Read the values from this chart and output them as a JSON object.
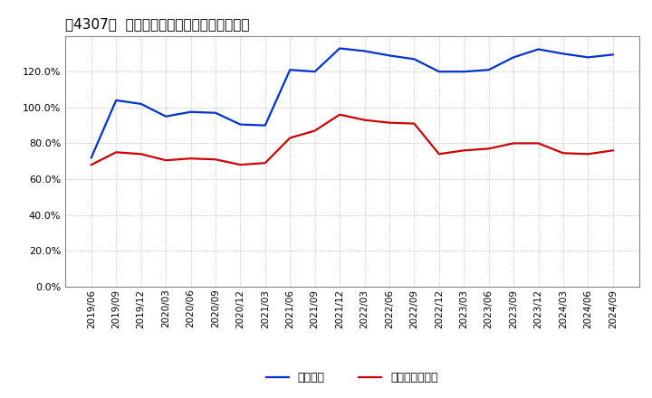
{
  "title": "［4307］  固定比率、固定長期適合率の推移",
  "x_labels": [
    "2019/06",
    "2019/09",
    "2019/12",
    "2020/03",
    "2020/06",
    "2020/09",
    "2020/12",
    "2021/03",
    "2021/06",
    "2021/09",
    "2021/12",
    "2022/03",
    "2022/06",
    "2022/09",
    "2022/12",
    "2023/03",
    "2023/06",
    "2023/09",
    "2023/12",
    "2024/03",
    "2024/06",
    "2024/09"
  ],
  "fixed_ratio": [
    72.0,
    104.0,
    102.0,
    95.0,
    97.5,
    97.0,
    90.5,
    90.0,
    121.0,
    120.0,
    133.0,
    131.5,
    129.0,
    127.0,
    120.0,
    120.0,
    121.0,
    128.0,
    132.5,
    130.0,
    128.0,
    129.5
  ],
  "fixed_long_ratio": [
    68.0,
    75.0,
    74.0,
    70.5,
    71.5,
    71.0,
    68.0,
    69.0,
    83.0,
    87.0,
    96.0,
    93.0,
    91.5,
    91.0,
    74.0,
    76.0,
    77.0,
    80.0,
    80.0,
    74.5,
    74.0,
    76.0
  ],
  "blue_color": "#0033cc",
  "red_color": "#cc0000",
  "legend_fixed": "固定比率",
  "legend_fixed_long": "固定長期適合率",
  "ylim": [
    0,
    140
  ],
  "yticks": [
    0,
    20,
    40,
    60,
    80,
    100,
    120
  ],
  "background_color": "#ffffff",
  "grid_color": "#999999"
}
